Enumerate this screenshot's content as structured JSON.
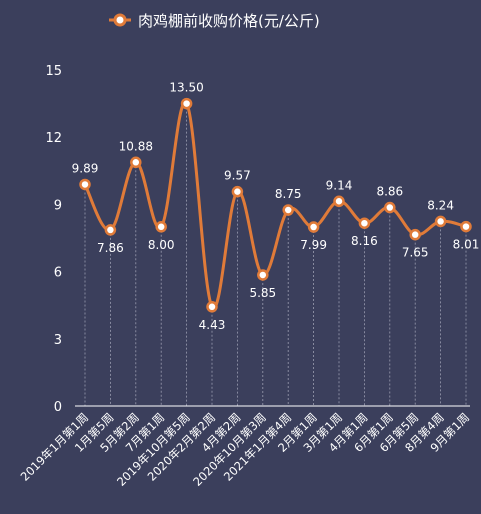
{
  "chart_data": {
    "type": "line",
    "legend": {
      "label": "肉鸡棚前收购价格(元/公斤)",
      "placement": "top-center"
    },
    "categories": [
      "2019年1月第1周",
      "1月第5周",
      "5月第2周",
      "7月第1周",
      "2019年10月第5周",
      "2020年2月第2周",
      "4月第2周",
      "2020年10月第3周",
      "2021年1月第4周",
      "2月第1周",
      "3月第1周",
      "4月第1周",
      "6月第1周",
      "6月第5周",
      "8月第4周",
      "9月第1周"
    ],
    "series": [
      {
        "name": "肉鸡棚前收购价格(元/公斤)",
        "values": [
          9.89,
          7.86,
          10.88,
          8.0,
          13.5,
          4.43,
          9.57,
          5.85,
          8.75,
          7.99,
          9.14,
          8.16,
          8.86,
          7.65,
          8.24,
          8.01
        ],
        "labels": [
          "9.89",
          "7.86",
          "10.88",
          "8.00",
          "13.50",
          "4.43",
          "9.57",
          "5.85",
          "8.75",
          "7.99",
          "9.14",
          "8.16",
          "8.86",
          "7.65",
          "8.24",
          "8.01"
        ],
        "color": "#e07b39"
      }
    ],
    "yticks": [
      "0",
      "3",
      "6",
      "9",
      "12",
      "15"
    ],
    "ylim": [
      0,
      15
    ],
    "grid": "vertical-dashed",
    "colors": {
      "background": "#3b3f5c",
      "line": "#e07b39",
      "marker_fill": "#ffffff",
      "grid": "#9a9cb0",
      "text": "#ffffff"
    }
  }
}
